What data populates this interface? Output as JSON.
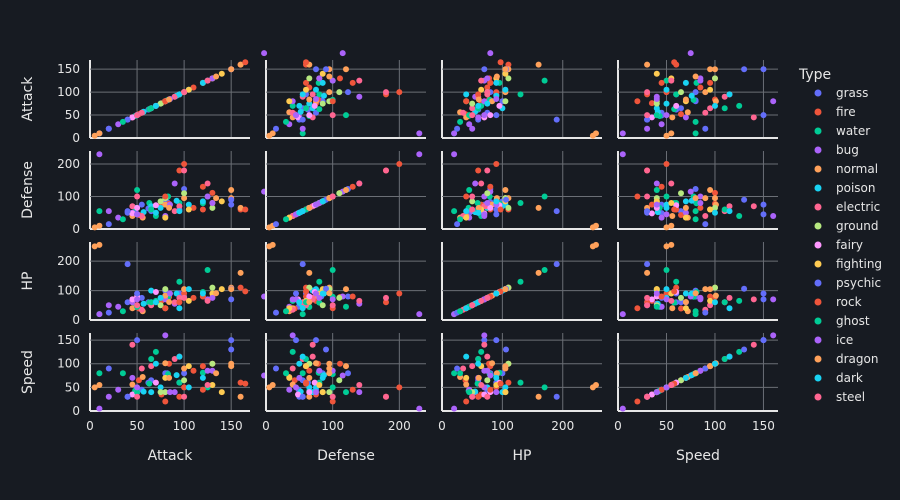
{
  "chart_data": {
    "type": "scatter",
    "subtype": "scatter-matrix",
    "dimensions": [
      "Attack",
      "Defense",
      "HP",
      "Speed"
    ],
    "axes": {
      "Attack": {
        "range": [
          0,
          170
        ],
        "ticks": [
          0,
          50,
          100,
          150
        ]
      },
      "Defense": {
        "range": [
          0,
          240
        ],
        "ticks": [
          0,
          100,
          200
        ]
      },
      "HP": {
        "range": [
          0,
          265
        ],
        "ticks": [
          0,
          100,
          200
        ]
      },
      "Speed": {
        "range": [
          0,
          165
        ],
        "ticks": [
          0,
          50,
          100,
          150
        ]
      }
    },
    "y_tick_labels": {
      "Attack": [
        "0",
        "50",
        "100",
        "150"
      ],
      "Defense": [
        "0",
        "100",
        "200"
      ],
      "HP": [
        "0",
        "100",
        "200"
      ],
      "Speed": [
        "0",
        "50",
        "100",
        "150"
      ]
    },
    "x_tick_labels": {
      "Attack": [
        "0",
        "50",
        "100",
        "150"
      ],
      "Defense": [
        "0",
        "100",
        "200"
      ],
      "HP": [
        "0",
        "100",
        "200"
      ],
      "Speed": [
        "0",
        "50",
        "100",
        "150"
      ]
    },
    "legend": {
      "title": "Type",
      "placement": "right",
      "entries": [
        {
          "name": "grass",
          "color": "#636efa"
        },
        {
          "name": "fire",
          "color": "#EF553B"
        },
        {
          "name": "water",
          "color": "#00cc96"
        },
        {
          "name": "bug",
          "color": "#ab63fa"
        },
        {
          "name": "normal",
          "color": "#FFA15A"
        },
        {
          "name": "poison",
          "color": "#19d3f3"
        },
        {
          "name": "electric",
          "color": "#FF6692"
        },
        {
          "name": "ground",
          "color": "#B6E880"
        },
        {
          "name": "fairy",
          "color": "#FF97FF"
        },
        {
          "name": "fighting",
          "color": "#FECB52"
        },
        {
          "name": "psychic",
          "color": "#636efa"
        },
        {
          "name": "rock",
          "color": "#EF553B"
        },
        {
          "name": "ghost",
          "color": "#00cc96"
        },
        {
          "name": "ice",
          "color": "#ab63fa"
        },
        {
          "name": "dragon",
          "color": "#FFA15A"
        },
        {
          "name": "dark",
          "color": "#19d3f3"
        },
        {
          "name": "steel",
          "color": "#FF6692"
        }
      ]
    },
    "series": [
      {
        "name": "grass",
        "points": [
          {
            "Attack": 49,
            "Defense": 49,
            "HP": 45,
            "Speed": 45
          },
          {
            "Attack": 62,
            "Defense": 63,
            "HP": 60,
            "Speed": 60
          },
          {
            "Attack": 82,
            "Defense": 83,
            "HP": 80,
            "Speed": 80
          },
          {
            "Attack": 100,
            "Defense": 123,
            "HP": 80,
            "Speed": 80
          },
          {
            "Attack": 55,
            "Defense": 75,
            "HP": 75,
            "Speed": 45
          },
          {
            "Attack": 80,
            "Defense": 85,
            "HP": 100,
            "Speed": 80
          },
          {
            "Attack": 65,
            "Defense": 55,
            "HP": 60,
            "Speed": 65
          },
          {
            "Attack": 150,
            "Defense": 75,
            "HP": 70,
            "Speed": 150
          },
          {
            "Attack": 40,
            "Defense": 50,
            "HP": 60,
            "Speed": 30
          },
          {
            "Attack": 95,
            "Defense": 60,
            "HP": 90,
            "Speed": 60
          }
        ]
      },
      {
        "name": "fire",
        "points": [
          {
            "Attack": 52,
            "Defense": 43,
            "HP": 39,
            "Speed": 65
          },
          {
            "Attack": 84,
            "Defense": 78,
            "HP": 78,
            "Speed": 100
          },
          {
            "Attack": 130,
            "Defense": 111,
            "HP": 78,
            "Speed": 100
          },
          {
            "Attack": 160,
            "Defense": 60,
            "HP": 110,
            "Speed": 60
          },
          {
            "Attack": 100,
            "Defense": 200,
            "HP": 90,
            "Speed": 50
          },
          {
            "Attack": 120,
            "Defense": 60,
            "HP": 80,
            "Speed": 95
          },
          {
            "Attack": 76,
            "Defense": 75,
            "HP": 65,
            "Speed": 35
          },
          {
            "Attack": 110,
            "Defense": 65,
            "HP": 75,
            "Speed": 85
          }
        ]
      },
      {
        "name": "water",
        "points": [
          {
            "Attack": 48,
            "Defense": 65,
            "HP": 44,
            "Speed": 43
          },
          {
            "Attack": 63,
            "Defense": 80,
            "HP": 59,
            "Speed": 58
          },
          {
            "Attack": 83,
            "Defense": 100,
            "HP": 79,
            "Speed": 78
          },
          {
            "Attack": 120,
            "Defense": 79,
            "HP": 95,
            "Speed": 81
          },
          {
            "Attack": 125,
            "Defense": 100,
            "HP": 170,
            "Speed": 50
          },
          {
            "Attack": 10,
            "Defense": 55,
            "HP": 20,
            "Speed": 80
          },
          {
            "Attack": 95,
            "Defense": 80,
            "HP": 130,
            "Speed": 60
          },
          {
            "Attack": 70,
            "Defense": 40,
            "HP": 65,
            "Speed": 125
          }
        ]
      },
      {
        "name": "bug",
        "points": [
          {
            "Attack": 30,
            "Defense": 35,
            "HP": 45,
            "Speed": 45
          },
          {
            "Attack": 20,
            "Defense": 55,
            "HP": 50,
            "Speed": 30
          },
          {
            "Attack": 45,
            "Defense": 50,
            "HP": 60,
            "Speed": 70
          },
          {
            "Attack": 10,
            "Defense": 230,
            "HP": 20,
            "Speed": 5
          },
          {
            "Attack": 185,
            "Defense": 115,
            "HP": 80,
            "Speed": 75
          },
          {
            "Attack": 125,
            "Defense": 100,
            "HP": 70,
            "Speed": 85
          },
          {
            "Attack": 80,
            "Defense": 40,
            "HP": 70,
            "Speed": 160
          },
          {
            "Attack": 90,
            "Defense": 140,
            "HP": 55,
            "Speed": 40
          }
        ]
      },
      {
        "name": "normal",
        "points": [
          {
            "Attack": 45,
            "Defense": 40,
            "HP": 40,
            "Speed": 56
          },
          {
            "Attack": 80,
            "Defense": 75,
            "HP": 83,
            "Speed": 101
          },
          {
            "Attack": 5,
            "Defense": 5,
            "HP": 250,
            "Speed": 50
          },
          {
            "Attack": 10,
            "Defense": 10,
            "HP": 255,
            "Speed": 55
          },
          {
            "Attack": 160,
            "Defense": 65,
            "HP": 160,
            "Speed": 30
          },
          {
            "Attack": 150,
            "Defense": 95,
            "HP": 110,
            "Speed": 100
          },
          {
            "Attack": 100,
            "Defense": 95,
            "HP": 105,
            "Speed": 90
          },
          {
            "Attack": 56,
            "Defense": 35,
            "HP": 30,
            "Speed": 72
          }
        ]
      },
      {
        "name": "poison",
        "points": [
          {
            "Attack": 57,
            "Defense": 52,
            "HP": 55,
            "Speed": 41
          },
          {
            "Attack": 92,
            "Defense": 87,
            "HP": 90,
            "Speed": 76
          },
          {
            "Attack": 65,
            "Defense": 70,
            "HP": 100,
            "Speed": 40
          },
          {
            "Attack": 75,
            "Defense": 65,
            "HP": 75,
            "Speed": 50
          },
          {
            "Attack": 105,
            "Defense": 75,
            "HP": 105,
            "Speed": 50
          }
        ]
      },
      {
        "name": "electric",
        "points": [
          {
            "Attack": 55,
            "Defense": 40,
            "HP": 35,
            "Speed": 90
          },
          {
            "Attack": 90,
            "Defense": 55,
            "HP": 60,
            "Speed": 110
          },
          {
            "Attack": 45,
            "Defense": 70,
            "HP": 70,
            "Speed": 140
          },
          {
            "Attack": 65,
            "Defense": 60,
            "HP": 50,
            "Speed": 95
          },
          {
            "Attack": 95,
            "Defense": 70,
            "HP": 75,
            "Speed": 115
          }
        ]
      },
      {
        "name": "ground",
        "points": [
          {
            "Attack": 75,
            "Defense": 85,
            "HP": 50,
            "Speed": 40
          },
          {
            "Attack": 100,
            "Defense": 110,
            "HP": 75,
            "Speed": 65
          },
          {
            "Attack": 80,
            "Defense": 95,
            "HP": 105,
            "Speed": 40
          },
          {
            "Attack": 130,
            "Defense": 65,
            "HP": 110,
            "Speed": 100
          }
        ]
      },
      {
        "name": "fairy",
        "points": [
          {
            "Attack": 45,
            "Defense": 48,
            "HP": 70,
            "Speed": 35
          },
          {
            "Attack": 70,
            "Defense": 73,
            "HP": 95,
            "Speed": 60
          },
          {
            "Attack": 50,
            "Defense": 65,
            "HP": 80,
            "Speed": 40
          }
        ]
      },
      {
        "name": "fighting",
        "points": [
          {
            "Attack": 80,
            "Defense": 35,
            "HP": 40,
            "Speed": 70
          },
          {
            "Attack": 105,
            "Defense": 60,
            "HP": 65,
            "Speed": 95
          },
          {
            "Attack": 130,
            "Defense": 80,
            "HP": 90,
            "Speed": 55
          },
          {
            "Attack": 140,
            "Defense": 85,
            "HP": 105,
            "Speed": 40
          }
        ]
      },
      {
        "name": "psychic",
        "points": [
          {
            "Attack": 20,
            "Defense": 15,
            "HP": 25,
            "Speed": 90
          },
          {
            "Attack": 150,
            "Defense": 90,
            "HP": 106,
            "Speed": 130
          },
          {
            "Attack": 50,
            "Defense": 45,
            "HP": 90,
            "Speed": 150
          },
          {
            "Attack": 40,
            "Defense": 55,
            "HP": 190,
            "Speed": 30
          }
        ]
      },
      {
        "name": "rock",
        "points": [
          {
            "Attack": 80,
            "Defense": 100,
            "HP": 40,
            "Speed": 20
          },
          {
            "Attack": 120,
            "Defense": 130,
            "HP": 80,
            "Speed": 45
          },
          {
            "Attack": 165,
            "Defense": 60,
            "HP": 97,
            "Speed": 58
          },
          {
            "Attack": 95,
            "Defense": 180,
            "HP": 60,
            "Speed": 30
          }
        ]
      },
      {
        "name": "ghost",
        "points": [
          {
            "Attack": 35,
            "Defense": 30,
            "HP": 30,
            "Speed": 80
          },
          {
            "Attack": 65,
            "Defense": 60,
            "HP": 60,
            "Speed": 110
          },
          {
            "Attack": 50,
            "Defense": 120,
            "HP": 45,
            "Speed": 40
          }
        ]
      },
      {
        "name": "ice",
        "points": [
          {
            "Attack": 85,
            "Defense": 75,
            "HP": 90,
            "Speed": 40
          },
          {
            "Attack": 130,
            "Defense": 80,
            "HP": 75,
            "Speed": 85
          },
          {
            "Attack": 50,
            "Defense": 45,
            "HP": 70,
            "Speed": 50
          }
        ]
      },
      {
        "name": "dragon",
        "points": [
          {
            "Attack": 134,
            "Defense": 95,
            "HP": 91,
            "Speed": 80
          },
          {
            "Attack": 150,
            "Defense": 120,
            "HP": 105,
            "Speed": 95
          },
          {
            "Attack": 84,
            "Defense": 65,
            "HP": 61,
            "Speed": 70
          }
        ]
      },
      {
        "name": "dark",
        "points": [
          {
            "Attack": 95,
            "Defense": 55,
            "HP": 40,
            "Speed": 115
          },
          {
            "Attack": 120,
            "Defense": 85,
            "HP": 90,
            "Speed": 70
          },
          {
            "Attack": 70,
            "Defense": 50,
            "HP": 60,
            "Speed": 100
          }
        ]
      },
      {
        "name": "steel",
        "points": [
          {
            "Attack": 50,
            "Defense": 100,
            "HP": 50,
            "Speed": 30
          },
          {
            "Attack": 125,
            "Defense": 140,
            "HP": 65,
            "Speed": 55
          },
          {
            "Attack": 100,
            "Defense": 180,
            "HP": 75,
            "Speed": 30
          }
        ]
      }
    ]
  }
}
